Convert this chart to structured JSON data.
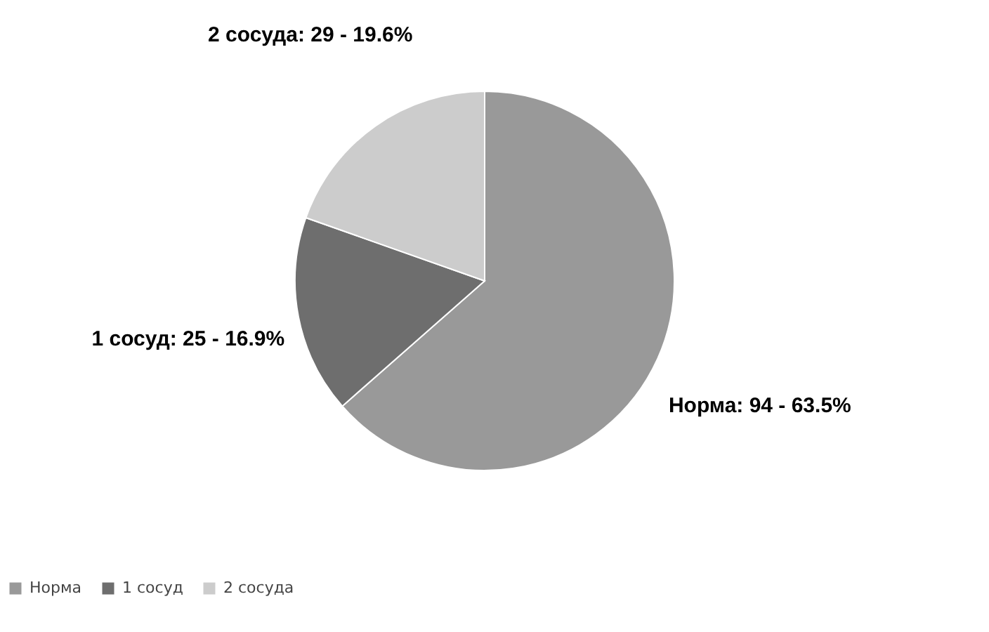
{
  "chart_data": {
    "type": "pie",
    "categories": [
      "Норма",
      "1 сосуд",
      "2 сосуда"
    ],
    "values": [
      94,
      25,
      29
    ],
    "colors": [
      "#999999",
      "#6e6e6e",
      "#cccccc"
    ],
    "value_labels": [
      "Норма: 94 - 63.5%",
      "1 сосуд: 25 - 16.9%",
      "2 сосуда: 29 - 19.6%"
    ],
    "legend": "bottom"
  }
}
